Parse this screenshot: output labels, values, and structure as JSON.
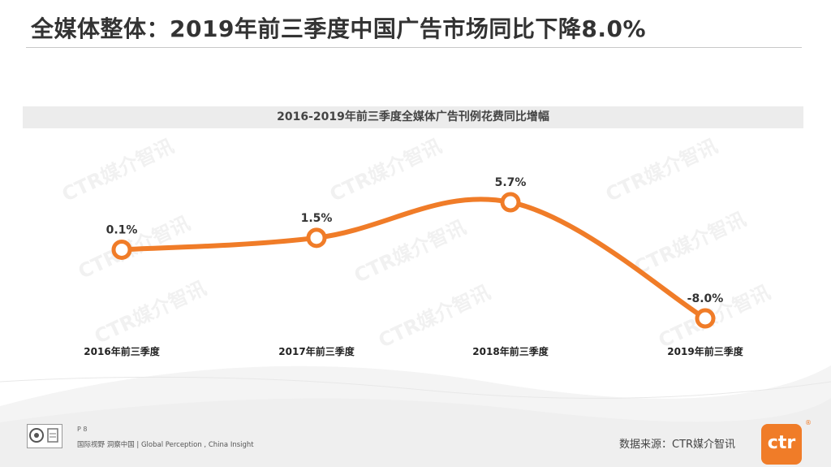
{
  "page_title": "全媒体整体：2019年前三季度中国广告市场同比下降8.0%",
  "watermark_text": "CTR媒介智讯",
  "footer": {
    "page_number": "P 8",
    "slogan": "国际视野  洞察中国  |  Global Perception , China Insight",
    "source": "数据来源：CTR媒介智讯",
    "brand_logo": "ctr",
    "brand_color": "#f07c28"
  },
  "chart_data": {
    "type": "line",
    "title": "2016-2019年前三季度全媒体广告刊例花费同比增幅",
    "categories": [
      "2016年前三季度",
      "2017年前三季度",
      "2018年前三季度",
      "2019年前三季度"
    ],
    "series": [
      {
        "values": [
          0.1,
          1.5,
          5.7,
          -8.0
        ],
        "labels": [
          "0.1%",
          "1.5%",
          "5.7%",
          "-8.0%"
        ]
      }
    ],
    "unit": "%",
    "ylim": [
      -9,
      7
    ],
    "smooth": true,
    "line_color": "#f07c28",
    "grid": false,
    "legend": "none"
  }
}
